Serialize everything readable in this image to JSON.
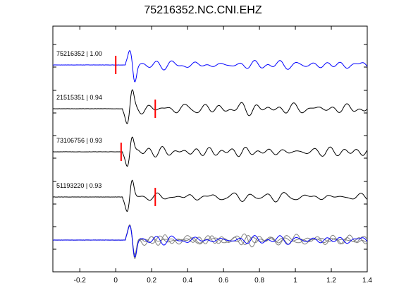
{
  "chart_data": {
    "type": "line",
    "title": "75216352.NC.CNI.EHZ",
    "xlabel": "",
    "ylabel": "",
    "xlim": [
      -0.35,
      1.4
    ],
    "xticks": [
      -0.2,
      0,
      0.2,
      0.4,
      0.6,
      0.8,
      1,
      1.2,
      1.4
    ],
    "xtick_labels": [
      "-0.2",
      "0",
      "0.2",
      "0.4",
      "0.6",
      "0.8",
      "1",
      "1.2",
      "1.4"
    ],
    "grid": false,
    "traces": [
      {
        "label": "75216352 | 1.00",
        "color": "#0000ff",
        "pick_time": 0.0,
        "onset": 0.055,
        "first_motion": -1,
        "amp": 1.0,
        "seed": 1
      },
      {
        "label": "21515351 | 0.94",
        "color": "#000000",
        "pick_time": 0.22,
        "onset": 0.04,
        "first_motion": 1,
        "amp": 1.0,
        "seed": 2
      },
      {
        "label": "73106756 | 0.93",
        "color": "#000000",
        "pick_time": 0.03,
        "onset": 0.04,
        "first_motion": 1,
        "amp": 1.0,
        "seed": 3
      },
      {
        "label": "51193220 | 0.93",
        "color": "#000000",
        "pick_time": 0.22,
        "onset": 0.04,
        "first_motion": 1,
        "amp": 1.0,
        "seed": 4
      }
    ],
    "stack": {
      "colors": [
        "#808080",
        "#808080",
        "#808080",
        "#0000ff"
      ]
    },
    "pick_color": "#ff0000"
  }
}
